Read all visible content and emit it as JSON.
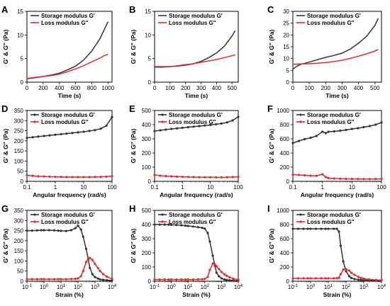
{
  "colors": {
    "storage": "#333333",
    "loss": "#e8282b"
  },
  "chart_data": [
    {
      "type": "line",
      "panel": "A",
      "xscale": "linear",
      "xlim": [
        0,
        1050
      ],
      "ylim": [
        0,
        15
      ],
      "xticks": [
        0,
        200,
        400,
        600,
        800,
        1000
      ],
      "yticks": [
        0,
        5,
        10,
        15
      ],
      "xlabel": "Time (s)",
      "ylabel": "G′ & G″ (Pa)",
      "markers": false,
      "legend": "top-left",
      "series": [
        {
          "name": "Storage modulus G′",
          "color": "#333333",
          "x": [
            0,
            100,
            200,
            300,
            400,
            500,
            600,
            700,
            800,
            900,
            950,
            1000
          ],
          "y": [
            0.7,
            0.95,
            1.2,
            1.5,
            1.9,
            2.6,
            3.4,
            4.7,
            6.6,
            9.2,
            11.0,
            12.8
          ]
        },
        {
          "name": "Loss modulus G″",
          "color": "#e8282b",
          "x": [
            0,
            100,
            200,
            300,
            400,
            500,
            600,
            700,
            800,
            900,
            950,
            1000
          ],
          "y": [
            0.8,
            1.0,
            1.2,
            1.4,
            1.7,
            2.2,
            2.8,
            3.5,
            4.3,
            5.1,
            5.6,
            5.9
          ]
        }
      ]
    },
    {
      "type": "line",
      "panel": "B",
      "xscale": "linear",
      "xlim": [
        0,
        540
      ],
      "ylim": [
        0,
        15
      ],
      "xticks": [
        0,
        100,
        200,
        300,
        400,
        500
      ],
      "yticks": [
        0,
        5,
        10,
        15
      ],
      "xlabel": "Time (s)",
      "ylabel": "G′ & G″ (Pa)",
      "markers": false,
      "legend": "top-left",
      "series": [
        {
          "name": "Storage modulus G′",
          "color": "#333333",
          "x": [
            0,
            50,
            100,
            150,
            200,
            250,
            300,
            350,
            400,
            450,
            500,
            520
          ],
          "y": [
            3.2,
            3.2,
            3.3,
            3.4,
            3.6,
            3.9,
            4.4,
            5.2,
            6.2,
            7.6,
            9.8,
            10.9
          ]
        },
        {
          "name": "Loss modulus G″",
          "color": "#e8282b",
          "x": [
            0,
            50,
            100,
            150,
            200,
            250,
            300,
            350,
            400,
            450,
            500,
            520
          ],
          "y": [
            3.3,
            3.3,
            3.3,
            3.5,
            3.7,
            3.9,
            4.2,
            4.5,
            4.8,
            5.2,
            5.6,
            5.8
          ]
        }
      ]
    },
    {
      "type": "line",
      "panel": "C",
      "xscale": "linear",
      "xlim": [
        0,
        540
      ],
      "ylim": [
        0,
        30
      ],
      "xticks": [
        0,
        100,
        200,
        300,
        400,
        500
      ],
      "yticks": [
        0,
        5,
        10,
        15,
        20,
        25,
        30
      ],
      "xlabel": "Time (s)",
      "ylabel": "G′ & G″ (Pa)",
      "markers": false,
      "legend": "top-left",
      "series": [
        {
          "name": "Storage modulus G′",
          "color": "#333333",
          "x": [
            0,
            25,
            50,
            100,
            150,
            200,
            250,
            300,
            350,
            400,
            450,
            500,
            520
          ],
          "y": [
            5.5,
            6.8,
            7.6,
            8.5,
            9.5,
            10.5,
            11.3,
            12.3,
            14.0,
            16.5,
            19.5,
            24.0,
            27.0
          ]
        },
        {
          "name": "Loss modulus G″",
          "color": "#e8282b",
          "x": [
            0,
            50,
            100,
            150,
            200,
            250,
            300,
            350,
            400,
            450,
            500,
            520
          ],
          "y": [
            7.6,
            7.7,
            7.8,
            8.0,
            8.3,
            8.7,
            9.3,
            10.1,
            11.0,
            12.0,
            13.2,
            13.8
          ]
        }
      ]
    },
    {
      "type": "line",
      "panel": "D",
      "xscale": "log",
      "xlim": [
        0.1,
        100
      ],
      "ylim": [
        0,
        350
      ],
      "xticks": [
        0.1,
        1,
        10,
        100
      ],
      "xticklabels": [
        "0.1",
        "1",
        "10",
        "100"
      ],
      "yticks": [
        0,
        50,
        100,
        150,
        200,
        250,
        300,
        350
      ],
      "xlabel": "Angular frequency (rad/s)",
      "ylabel": "G′ & G″ (Pa)",
      "markers": true,
      "legend": "top-left",
      "series": [
        {
          "name": "Storage modulus G′",
          "color": "#333333",
          "x": [
            0.1,
            0.16,
            0.25,
            0.4,
            0.63,
            1,
            1.6,
            2.5,
            4,
            6.3,
            10,
            16,
            25,
            40,
            63,
            100
          ],
          "y": [
            215,
            218,
            221,
            224,
            227,
            230,
            233,
            236,
            239,
            242,
            245,
            249,
            253,
            260,
            275,
            318
          ]
        },
        {
          "name": "Loss modulus G″",
          "color": "#e8282b",
          "x": [
            0.1,
            0.16,
            0.25,
            0.4,
            0.63,
            1,
            1.6,
            2.5,
            4,
            6.3,
            10,
            16,
            25,
            40,
            63,
            100
          ],
          "y": [
            30,
            27,
            25,
            24,
            23,
            22,
            22,
            21,
            21,
            21,
            21,
            21,
            22,
            22,
            23,
            26
          ]
        }
      ]
    },
    {
      "type": "line",
      "panel": "E",
      "xscale": "log",
      "xlim": [
        0.1,
        100
      ],
      "ylim": [
        0,
        500
      ],
      "xticks": [
        0.1,
        1,
        10,
        100
      ],
      "xticklabels": [
        "0.1",
        "1",
        "10",
        "100"
      ],
      "yticks": [
        0,
        100,
        200,
        300,
        400,
        500
      ],
      "xlabel": "Angular frequency (rad/s)",
      "ylabel": "G′ & G″ (Pa)",
      "markers": true,
      "legend": "top-left",
      "series": [
        {
          "name": "Storage modulus G′",
          "color": "#333333",
          "x": [
            0.1,
            0.16,
            0.25,
            0.4,
            0.63,
            1,
            1.6,
            2.5,
            4,
            6.3,
            10,
            16,
            25,
            40,
            63,
            100
          ],
          "y": [
            355,
            360,
            365,
            370,
            374,
            378,
            382,
            386,
            390,
            394,
            398,
            403,
            408,
            416,
            430,
            455
          ]
        },
        {
          "name": "Loss modulus G″",
          "color": "#e8282b",
          "x": [
            0.1,
            0.16,
            0.25,
            0.4,
            0.63,
            1,
            1.6,
            2.5,
            4,
            6.3,
            10,
            16,
            25,
            40,
            63,
            100
          ],
          "y": [
            45,
            40,
            37,
            35,
            33,
            32,
            31,
            30,
            29,
            29,
            29,
            28,
            28,
            29,
            30,
            32
          ]
        }
      ]
    },
    {
      "type": "line",
      "panel": "F",
      "xscale": "log",
      "xlim": [
        0.1,
        100
      ],
      "ylim": [
        0,
        1000
      ],
      "xticks": [
        0.1,
        1,
        10,
        100
      ],
      "xticklabels": [
        "0.1",
        "1",
        "10",
        "100"
      ],
      "yticks": [
        0,
        200,
        400,
        600,
        800,
        1000
      ],
      "xlabel": "Angular frequency (rad/s)",
      "ylabel": "G′ & G″ (Pa)",
      "markers": true,
      "legend": "top-left",
      "series": [
        {
          "name": "Storage modulus G′",
          "color": "#333333",
          "x": [
            0.1,
            0.16,
            0.25,
            0.4,
            0.63,
            1,
            1.3,
            1.6,
            2.5,
            4,
            6.3,
            10,
            16,
            25,
            40,
            63,
            100
          ],
          "y": [
            540,
            570,
            595,
            615,
            640,
            700,
            680,
            700,
            705,
            715,
            725,
            740,
            750,
            765,
            780,
            800,
            830
          ]
        },
        {
          "name": "Loss modulus G″",
          "color": "#e8282b",
          "x": [
            0.1,
            0.16,
            0.25,
            0.4,
            0.63,
            1,
            1.3,
            1.6,
            2.5,
            4,
            6.3,
            10,
            16,
            25,
            40,
            63,
            100
          ],
          "y": [
            95,
            90,
            85,
            80,
            78,
            100,
            60,
            45,
            40,
            37,
            35,
            34,
            33,
            32,
            32,
            33,
            35
          ]
        }
      ]
    },
    {
      "type": "line",
      "panel": "G",
      "xscale": "log",
      "xlim": [
        0.1,
        10000
      ],
      "ylim": [
        0,
        350
      ],
      "xticks": [
        0.1,
        1,
        10,
        100,
        1000,
        10000
      ],
      "xticklabels": [
        "10-1",
        "100",
        "101",
        "102",
        "103",
        "104"
      ],
      "xtickbase": true,
      "yticks": [
        0,
        50,
        100,
        150,
        200,
        250,
        300,
        350
      ],
      "xlabel": "Strain (%)",
      "ylabel": "G′ & G″ (Pa)",
      "markers": true,
      "legend": "top-left",
      "series": [
        {
          "name": "Storage modulus G′",
          "color": "#333333",
          "x": [
            0.1,
            0.2,
            0.4,
            0.7,
            1,
            2,
            4,
            7,
            10,
            20,
            40,
            70,
            100,
            150,
            200,
            300,
            400,
            500,
            700,
            1000,
            1500,
            2000,
            3000,
            5000,
            10000
          ],
          "y": [
            250,
            250,
            251,
            252,
            252,
            252,
            251,
            250,
            249,
            248,
            252,
            262,
            275,
            255,
            220,
            160,
            110,
            65,
            35,
            20,
            13,
            9,
            7,
            5,
            4
          ]
        },
        {
          "name": "Loss modulus G″",
          "color": "#e8282b",
          "x": [
            0.1,
            0.2,
            0.4,
            0.7,
            1,
            2,
            4,
            7,
            10,
            20,
            40,
            70,
            100,
            150,
            200,
            300,
            400,
            500,
            700,
            1000,
            1500,
            2000,
            3000,
            5000,
            10000
          ],
          "y": [
            10,
            10,
            10,
            10,
            10,
            10,
            10,
            10,
            10,
            10,
            11,
            12,
            14,
            25,
            50,
            95,
            112,
            115,
            105,
            85,
            65,
            50,
            35,
            22,
            12
          ]
        }
      ]
    },
    {
      "type": "line",
      "panel": "H",
      "xscale": "log",
      "xlim": [
        0.1,
        10000
      ],
      "ylim": [
        0,
        500
      ],
      "xticks": [
        0.1,
        1,
        10,
        100,
        1000,
        10000
      ],
      "xticklabels": [
        "10-1",
        "100",
        "101",
        "102",
        "103",
        "104"
      ],
      "xtickbase": true,
      "yticks": [
        0,
        100,
        200,
        300,
        400,
        500
      ],
      "xlabel": "Strain (%)",
      "ylabel": "G′ & G″ (Pa)",
      "markers": true,
      "legend": "top-left",
      "series": [
        {
          "name": "Storage modulus G′",
          "color": "#333333",
          "x": [
            0.1,
            0.2,
            0.4,
            0.7,
            1,
            2,
            4,
            7,
            10,
            20,
            40,
            70,
            100,
            150,
            200,
            300,
            400,
            500,
            700,
            1000,
            1500,
            2000,
            3000,
            5000,
            10000
          ],
          "y": [
            400,
            400,
            400,
            399,
            398,
            397,
            395,
            392,
            390,
            386,
            381,
            377,
            372,
            340,
            280,
            180,
            110,
            60,
            35,
            20,
            12,
            9,
            7,
            5,
            4
          ]
        },
        {
          "name": "Loss modulus G″",
          "color": "#e8282b",
          "x": [
            0.1,
            0.2,
            0.4,
            0.7,
            1,
            2,
            4,
            7,
            10,
            20,
            40,
            70,
            100,
            150,
            200,
            300,
            400,
            500,
            700,
            1000,
            1500,
            2000,
            3000,
            5000,
            10000
          ],
          "y": [
            12,
            12,
            12,
            12,
            12,
            12,
            12,
            12,
            12,
            12,
            13,
            14,
            16,
            30,
            80,
            125,
            120,
            105,
            85,
            65,
            48,
            38,
            28,
            18,
            10
          ]
        }
      ]
    },
    {
      "type": "line",
      "panel": "I",
      "xscale": "log",
      "xlim": [
        0.1,
        10000
      ],
      "ylim": [
        0,
        1000
      ],
      "xticks": [
        0.1,
        1,
        10,
        100,
        1000,
        10000
      ],
      "xticklabels": [
        "10-1",
        "100",
        "101",
        "102",
        "103",
        "104"
      ],
      "xtickbase": true,
      "yticks": [
        0,
        200,
        400,
        600,
        800,
        1000
      ],
      "xlabel": "Strain (%)",
      "ylabel": "G′ & G″ (Pa)",
      "markers": true,
      "legend": "top-left",
      "series": [
        {
          "name": "Storage modulus G′",
          "color": "#333333",
          "x": [
            0.1,
            0.2,
            0.4,
            0.7,
            1,
            2,
            4,
            7,
            10,
            20,
            30,
            40,
            50,
            70,
            100,
            150,
            200,
            300,
            500,
            700,
            1000,
            2000,
            5000,
            10000
          ],
          "y": [
            740,
            740,
            740,
            740,
            740,
            740,
            740,
            740,
            740,
            740,
            740,
            700,
            500,
            280,
            140,
            70,
            45,
            30,
            22,
            18,
            16,
            13,
            11,
            10
          ]
        },
        {
          "name": "Loss modulus G″",
          "color": "#e8282b",
          "x": [
            0.1,
            0.2,
            0.4,
            0.7,
            1,
            2,
            4,
            7,
            10,
            20,
            30,
            40,
            50,
            70,
            100,
            150,
            200,
            300,
            500,
            700,
            1000,
            2000,
            5000,
            10000
          ],
          "y": [
            40,
            40,
            40,
            40,
            40,
            40,
            40,
            40,
            40,
            40,
            42,
            50,
            100,
            165,
            170,
            150,
            120,
            90,
            60,
            45,
            35,
            25,
            18,
            15
          ]
        }
      ]
    }
  ]
}
